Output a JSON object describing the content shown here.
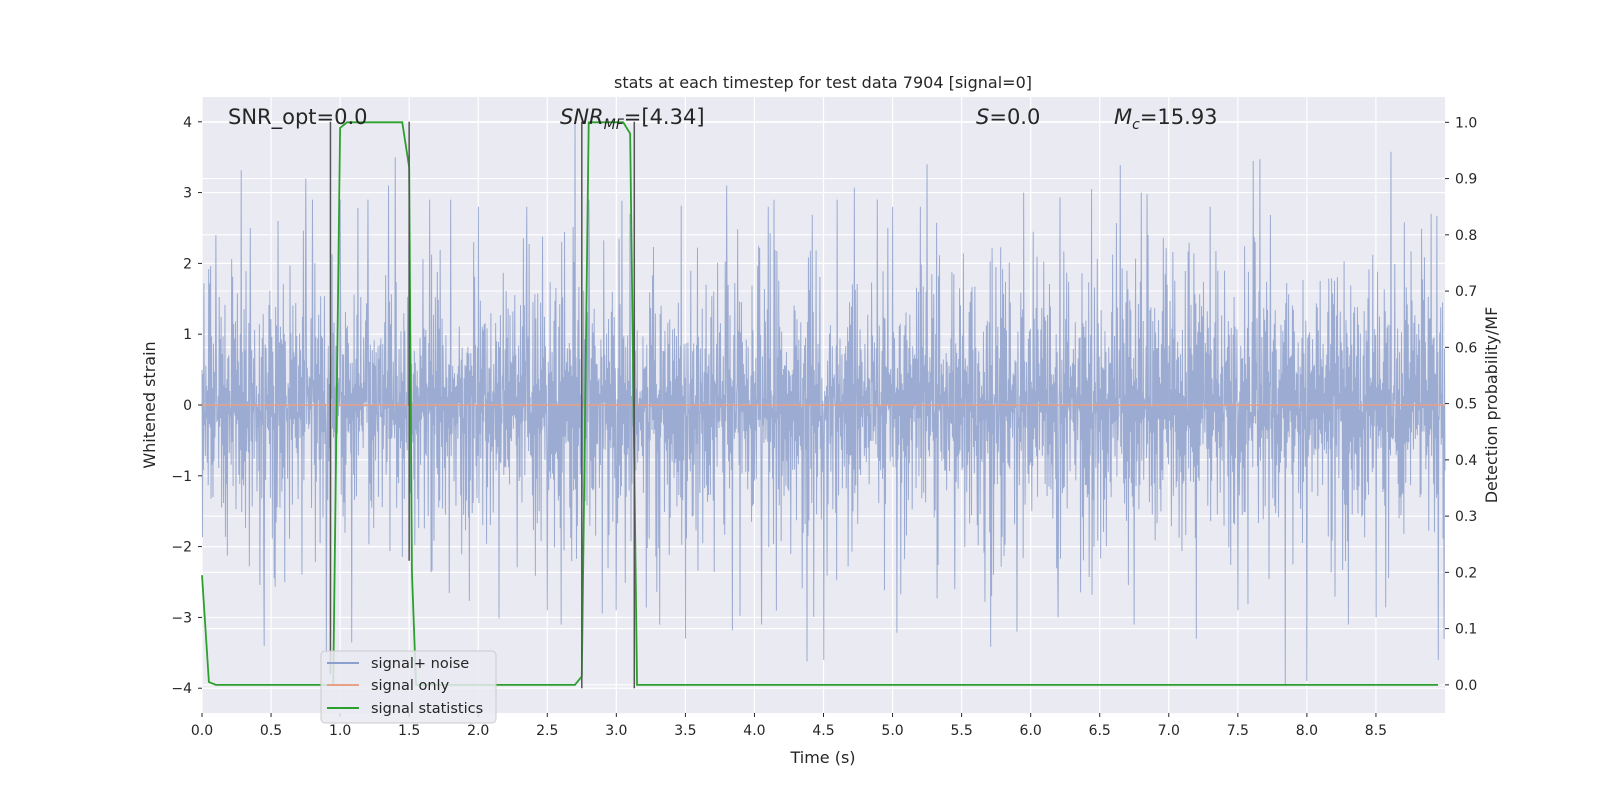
{
  "chart_data": {
    "type": "line",
    "title": "stats at each timestep for test data 7904 [signal=0]",
    "xlabel": "Time (s)",
    "ylabel_left": "Whitened strain",
    "ylabel_right": "Detection probability/MF",
    "xlim": [
      0.0,
      9.0
    ],
    "ylim_left": [
      -4.35,
      4.35
    ],
    "ylim_right": [
      -0.05,
      1.045
    ],
    "xticks": [
      "0.0",
      "0.5",
      "1.0",
      "1.5",
      "2.0",
      "2.5",
      "3.0",
      "3.5",
      "4.0",
      "4.5",
      "5.0",
      "5.5",
      "6.0",
      "6.5",
      "7.0",
      "7.5",
      "8.0",
      "8.5"
    ],
    "yticks_left": [
      "−4",
      "−3",
      "−2",
      "−1",
      "0",
      "1",
      "2",
      "3",
      "4"
    ],
    "yticks_right": [
      "0.0",
      "0.1",
      "0.2",
      "0.3",
      "0.4",
      "0.5",
      "0.6",
      "0.7",
      "0.8",
      "0.9",
      "1.0"
    ],
    "grid": true,
    "legend_placement": "lower-left",
    "annotations": {
      "snr_opt": "SNR_opt=0.0",
      "snr_mf_main": "SNR",
      "snr_mf_sub": "MF",
      "snr_mf_value": "=[4.34]",
      "s_main": "S",
      "s_value": "=0.0",
      "mc_main": "M",
      "mc_sub": "c",
      "mc_value": "=15.93"
    },
    "series": [
      {
        "name": "signal+ noise",
        "color": "#8da0cb",
        "kind": "noise",
        "x_range": [
          0.0,
          9.0
        ],
        "typical_abs": 1.6,
        "peak_abs": 4.0,
        "spikes": [
          [
            0.1,
            2.4
          ],
          [
            0.35,
            2.5
          ],
          [
            0.45,
            -3.4
          ],
          [
            0.55,
            2.6
          ],
          [
            0.6,
            -2.5
          ],
          [
            0.75,
            3.2
          ],
          [
            0.8,
            2.9
          ],
          [
            0.9,
            -3.5
          ],
          [
            1.0,
            2.9
          ],
          [
            1.2,
            2.9
          ],
          [
            1.35,
            3.1
          ],
          [
            1.4,
            3.5
          ],
          [
            1.5,
            3.2
          ],
          [
            1.65,
            2.9
          ],
          [
            1.8,
            2.9
          ],
          [
            2.0,
            2.8
          ],
          [
            2.35,
            2.8
          ],
          [
            2.5,
            -2.9
          ],
          [
            2.6,
            -3.1
          ],
          [
            2.7,
            4.0
          ],
          [
            2.8,
            2.9
          ],
          [
            3.0,
            -2.9
          ],
          [
            3.1,
            2.7
          ],
          [
            3.5,
            -3.3
          ],
          [
            3.8,
            3.1
          ],
          [
            4.05,
            -3.1
          ],
          [
            4.1,
            2.8
          ],
          [
            4.5,
            -3.6
          ],
          [
            4.6,
            2.9
          ],
          [
            5.0,
            2.8
          ],
          [
            5.2,
            2.8
          ],
          [
            5.25,
            3.4
          ],
          [
            5.45,
            -2.6
          ],
          [
            5.9,
            -3.2
          ],
          [
            5.95,
            3.0
          ],
          [
            6.2,
            -3.0
          ],
          [
            6.8,
            3.0
          ],
          [
            6.75,
            -3.1
          ],
          [
            7.2,
            -3.3
          ],
          [
            7.3,
            2.8
          ],
          [
            7.5,
            -2.9
          ],
          [
            8.0,
            3.3
          ],
          [
            8.0,
            -3.9
          ],
          [
            8.3,
            -3.1
          ],
          [
            8.5,
            -3.0
          ],
          [
            8.95,
            -3.6
          ],
          [
            8.9,
            2.7
          ]
        ]
      },
      {
        "name": "signal only",
        "color": "#e8a087",
        "kind": "flat",
        "x": [
          0.0,
          9.0
        ],
        "y": [
          0.0,
          0.0
        ]
      },
      {
        "name": "signal statistics",
        "color": "#2ca02c",
        "axis": "right",
        "x": [
          0.0,
          0.05,
          0.1,
          0.15,
          0.9,
          0.93,
          0.95,
          1.0,
          1.05,
          1.45,
          1.5,
          1.52,
          1.55,
          2.7,
          2.75,
          2.8,
          2.85,
          3.05,
          3.1,
          3.15,
          3.2,
          3.25,
          8.95
        ],
        "y": [
          0.195,
          0.005,
          0.0,
          0.0,
          0.0,
          0.0,
          0.0,
          0.99,
          1.0,
          1.0,
          0.92,
          0.2,
          0.0,
          0.0,
          0.015,
          1.0,
          1.0,
          1.0,
          0.98,
          0.0,
          0.0,
          0.0,
          0.0
        ]
      }
    ],
    "vertical_markers": [
      {
        "x": 0.93,
        "y": [
          -3.8,
          4.0
        ]
      },
      {
        "x": 1.5,
        "y": [
          -2.2,
          4.0
        ]
      },
      {
        "x": 2.75,
        "y": [
          -4.0,
          4.0
        ]
      },
      {
        "x": 3.13,
        "y": [
          -4.0,
          4.0
        ]
      }
    ]
  }
}
